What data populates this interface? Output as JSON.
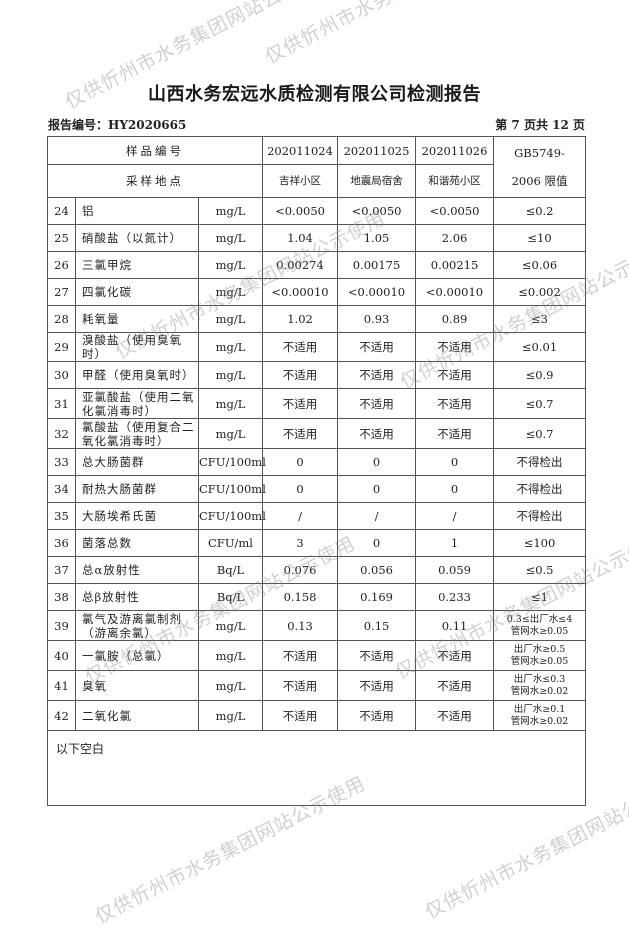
{
  "title": "山西水务宏远水质检测有限公司检测报告",
  "report_no": "报告编号：HY2020665",
  "page_info": "第 7 页共 12 页",
  "header": {
    "sample_no_label": "样品编号",
    "location_label": "采样地点",
    "samples": [
      "202011024",
      "202011025",
      "202011026"
    ],
    "locations": [
      "吉祥小区",
      "地震局宿舍",
      "和谐苑小区"
    ],
    "limit_label_1": "GB5749-",
    "limit_label_2": "2006 限值"
  },
  "rows": [
    {
      "no": "24",
      "name": "铝",
      "unit": "mg/L",
      "v": [
        "<0.0050",
        "<0.0050",
        "<0.0050"
      ],
      "limit": "≤0.2"
    },
    {
      "no": "25",
      "name": "硝酸盐（以氮计）",
      "unit": "mg/L",
      "v": [
        "1.04",
        "1.05",
        "2.06"
      ],
      "limit": "≤10"
    },
    {
      "no": "26",
      "name": "三氯甲烷",
      "unit": "mg/L",
      "v": [
        "0.00274",
        "0.00175",
        "0.00215"
      ],
      "limit": "≤0.06"
    },
    {
      "no": "27",
      "name": "四氯化碳",
      "unit": "mg/L",
      "v": [
        "<0.00010",
        "<0.00010",
        "<0.00010"
      ],
      "limit": "≤0.002"
    },
    {
      "no": "28",
      "name": "耗氧量",
      "unit": "mg/L",
      "v": [
        "1.02",
        "0.93",
        "0.89"
      ],
      "limit": "≤3"
    },
    {
      "no": "29",
      "name": "溴酸盐（使用臭氧时）",
      "unit": "mg/L",
      "v": [
        "不适用",
        "不适用",
        "不适用"
      ],
      "limit": "≤0.01"
    },
    {
      "no": "30",
      "name": "甲醛（使用臭氧时）",
      "unit": "mg/L",
      "v": [
        "不适用",
        "不适用",
        "不适用"
      ],
      "limit": "≤0.9"
    },
    {
      "no": "31",
      "name": "亚氯酸盐（使用二氧化氯消毒时）",
      "unit": "mg/L",
      "v": [
        "不适用",
        "不适用",
        "不适用"
      ],
      "limit": "≤0.7",
      "tall": true
    },
    {
      "no": "32",
      "name": "氯酸盐（使用复合二氧化氯消毒时）",
      "unit": "mg/L",
      "v": [
        "不适用",
        "不适用",
        "不适用"
      ],
      "limit": "≤0.7",
      "tall": true
    },
    {
      "no": "33",
      "name": "总大肠菌群",
      "unit": "CFU/100ml",
      "v": [
        "0",
        "0",
        "0"
      ],
      "limit": "不得检出"
    },
    {
      "no": "34",
      "name": "耐热大肠菌群",
      "unit": "CFU/100ml",
      "v": [
        "0",
        "0",
        "0"
      ],
      "limit": "不得检出"
    },
    {
      "no": "35",
      "name": "大肠埃希氏菌",
      "unit": "CFU/100ml",
      "v": [
        "/",
        "/",
        "/"
      ],
      "limit": "不得检出"
    },
    {
      "no": "36",
      "name": "菌落总数",
      "unit": "CFU/ml",
      "v": [
        "3",
        "0",
        "1"
      ],
      "limit": "≤100"
    },
    {
      "no": "37",
      "name": "总α放射性",
      "unit": "Bq/L",
      "v": [
        "0.076",
        "0.056",
        "0.059"
      ],
      "limit": "≤0.5"
    },
    {
      "no": "38",
      "name": "总β放射性",
      "unit": "Bq/L",
      "v": [
        "0.158",
        "0.169",
        "0.233"
      ],
      "limit": "≤1"
    },
    {
      "no": "39",
      "name": "氯气及游离氯制剂（游离余氯）",
      "unit": "mg/L",
      "v": [
        "0.13",
        "0.15",
        "0.11"
      ],
      "limit": "0.3≤出厂水≤4",
      "limit2": "管网水≥0.05",
      "tall": true
    },
    {
      "no": "40",
      "name": "一氯胺（总氯）",
      "unit": "mg/L",
      "v": [
        "不适用",
        "不适用",
        "不适用"
      ],
      "limit": "出厂水≥0.5",
      "limit2": "管网水≥0.05",
      "tall": true
    },
    {
      "no": "41",
      "name": "臭氧",
      "unit": "mg/L",
      "v": [
        "不适用",
        "不适用",
        "不适用"
      ],
      "limit": "出厂水≤0.3",
      "limit2": "管网水≥0.02",
      "tall": true
    },
    {
      "no": "42",
      "name": "二氧化氯",
      "unit": "mg/L",
      "v": [
        "不适用",
        "不适用",
        "不适用"
      ],
      "limit": "出厂水≥0.1",
      "limit2": "管网水≥0.02",
      "tall": true
    }
  ],
  "footer_note": "以下空白",
  "watermark": "仅供忻州市水务集团网站公示使用"
}
